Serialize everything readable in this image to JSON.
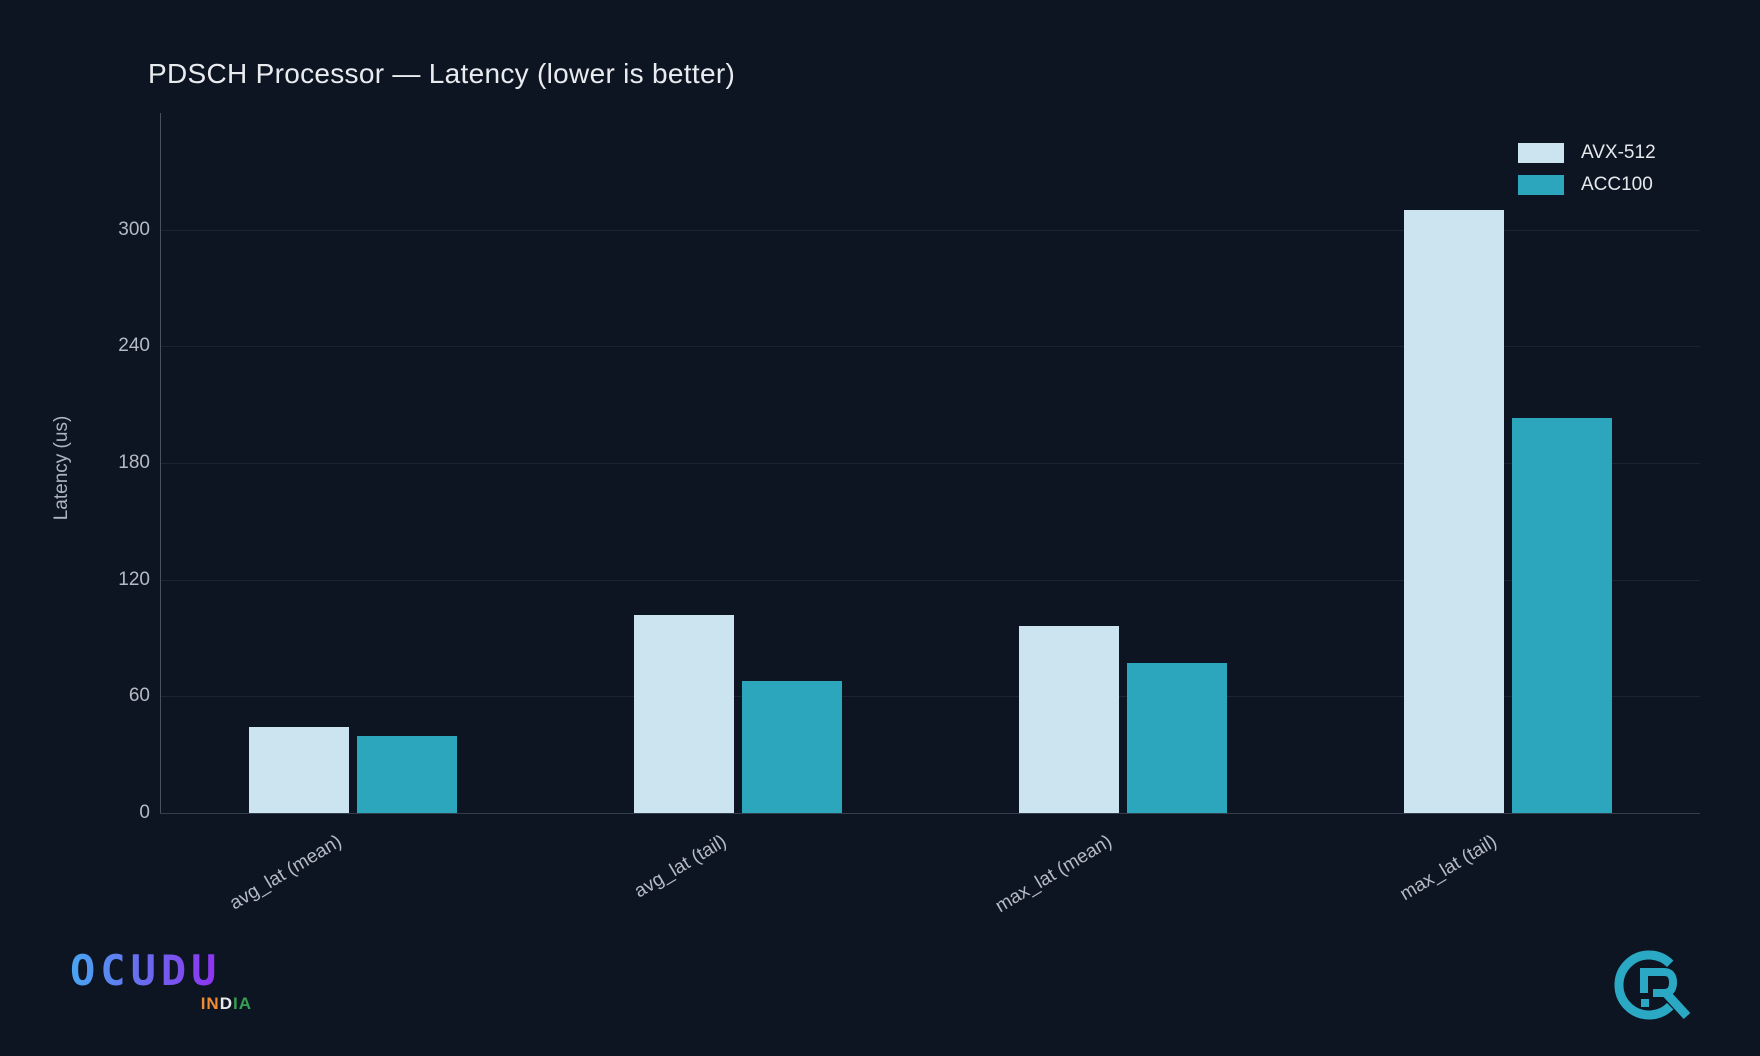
{
  "title": "PDSCH Processor — Latency (lower is better)",
  "chart_data": {
    "type": "bar",
    "title": "PDSCH Processor — Latency (lower is better)",
    "categories": [
      "avg_lat (mean)",
      "avg_lat (tail)",
      "max_lat (mean)",
      "max_lat (tail)"
    ],
    "series": [
      {
        "name": "AVX-512",
        "color": "#cbe4f0",
        "values": [
          44,
          102,
          96,
          310
        ]
      },
      {
        "name": "ACC100",
        "color": "#2ba6bc",
        "values": [
          39.5,
          68,
          77,
          203
        ]
      }
    ],
    "xlabel": "",
    "ylabel": "Latency (us)",
    "yticks": [
      0,
      60,
      120,
      180,
      240,
      300
    ],
    "ylim": [
      0,
      360
    ],
    "grid": true,
    "legend_position": "top-right"
  },
  "branding": {
    "wordmark": "OCUDU",
    "wordmark_gradient": [
      "#49a6f2",
      "#6f62ef",
      "#9e1ef5"
    ],
    "india_letters": [
      {
        "ch": "I",
        "color": "#f08c33"
      },
      {
        "ch": "N",
        "color": "#f08c33"
      },
      {
        "ch": "D",
        "color": "#e8e8e8"
      },
      {
        "ch": "I",
        "color": "#35a04f"
      },
      {
        "ch": "A",
        "color": "#35a04f"
      }
    ],
    "cr_logo_color": "#2aa8c4"
  }
}
